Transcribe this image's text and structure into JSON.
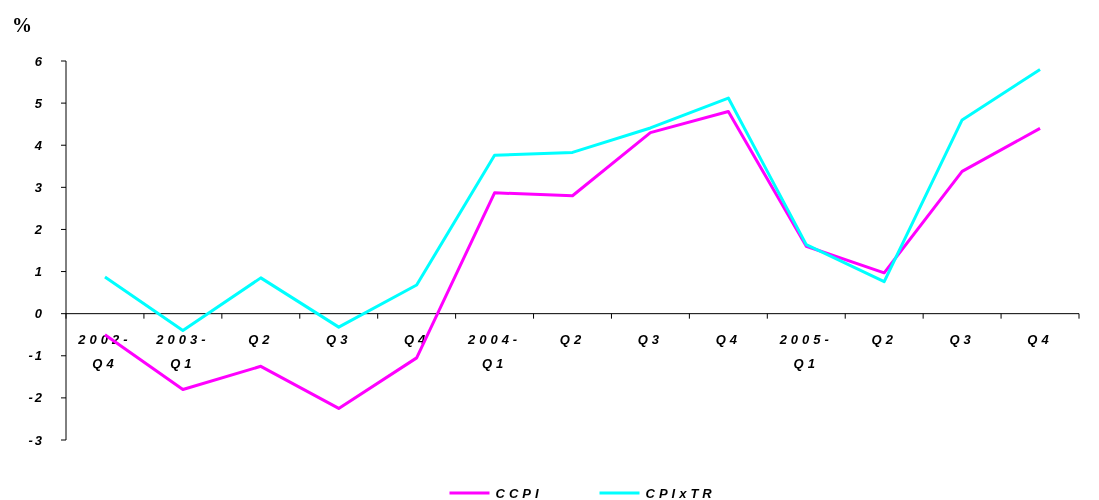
{
  "chart_data": {
    "type": "line",
    "ylabel": "%",
    "categories": [
      "2002-Q4",
      "2003-Q1",
      "Q2",
      "Q3",
      "Q4",
      "2004-Q1",
      "Q2",
      "Q3",
      "Q4",
      "2005-Q1",
      "Q2",
      "Q3",
      "Q4"
    ],
    "series": [
      {
        "name": "CCPI",
        "color": "#ff00ff",
        "values": [
          -0.5,
          -1.8,
          -1.25,
          -2.25,
          -1.05,
          2.87,
          2.8,
          4.3,
          4.8,
          1.6,
          0.97,
          3.38,
          4.4
        ]
      },
      {
        "name": "CPIxTR",
        "color": "#00ffff",
        "values": [
          0.87,
          -0.4,
          0.85,
          -0.32,
          0.68,
          3.76,
          3.83,
          4.41,
          5.12,
          1.64,
          0.76,
          4.6,
          5.8
        ]
      }
    ],
    "ylim": [
      -3,
      6
    ],
    "yticks": [
      -3,
      -2,
      -1,
      0,
      1,
      2,
      3,
      4,
      5,
      6
    ],
    "grid": false,
    "legend": "bottom",
    "line_style": "solid"
  }
}
